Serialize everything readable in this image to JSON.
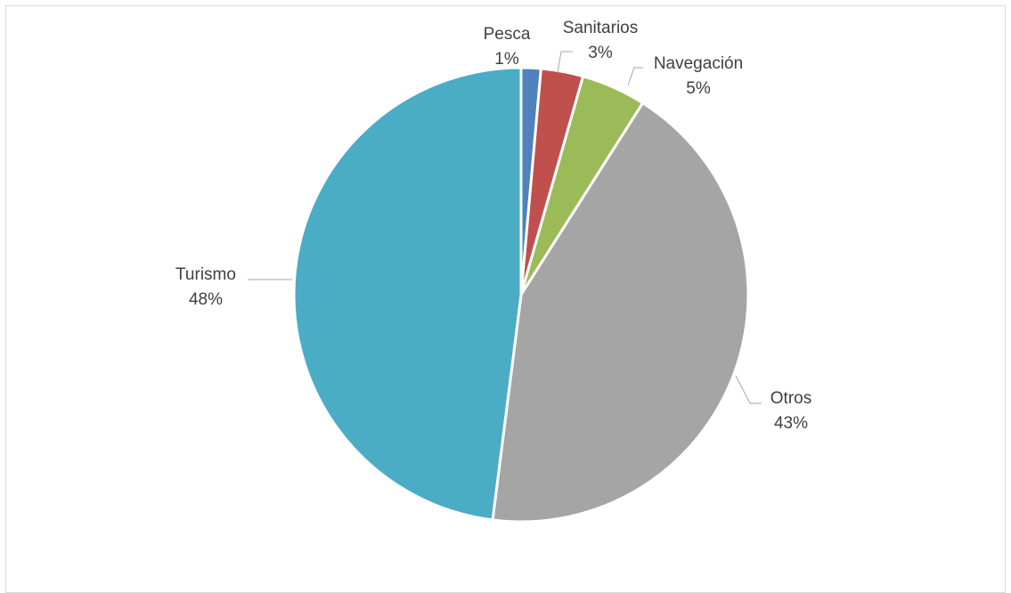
{
  "chart_data": {
    "type": "pie",
    "title": "",
    "categories": [
      "Pesca",
      "Sanitarios",
      "Navegación",
      "Otros",
      "Turismo"
    ],
    "values": [
      1.4,
      3.0,
      4.6,
      43.0,
      48.0
    ],
    "percent_labels": [
      "1%",
      "3%",
      "5%",
      "43%",
      "48%"
    ],
    "colors": [
      "#4f81bd",
      "#c0504d",
      "#9bbb59",
      "#a5a5a5",
      "#4bacc6"
    ],
    "start_angle_deg": 0,
    "direction": "clockwise",
    "legend": "none",
    "data_labels": "outside with leader lines"
  }
}
